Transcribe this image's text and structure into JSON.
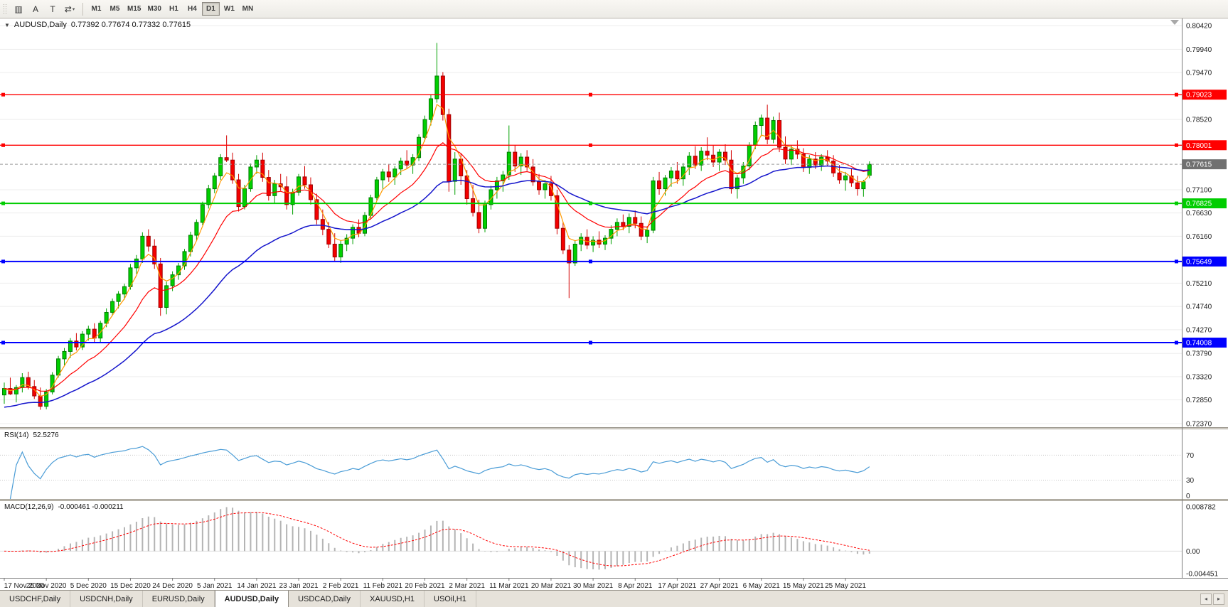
{
  "toolbar": {
    "tools": [
      {
        "name": "charts-icon",
        "glyph": "▥",
        "dropdown": false
      },
      {
        "name": "cursor-tool-icon",
        "glyph": "A",
        "dropdown": false
      },
      {
        "name": "text-tool-icon",
        "glyph": "T",
        "dropdown": false
      },
      {
        "name": "indicators-tool-icon",
        "glyph": "⇄",
        "dropdown": true
      }
    ],
    "timeframes": [
      "M1",
      "M5",
      "M15",
      "M30",
      "H1",
      "H4",
      "D1",
      "W1",
      "MN"
    ],
    "active_timeframe": "D1"
  },
  "chart": {
    "arrow_glyph": "▼",
    "symbol_period": "AUDUSD,Daily",
    "ohlc": "0.77392 0.77674 0.77332 0.77615",
    "rsi_label": "RSI(14)",
    "rsi_value": "52.5276",
    "macd_label": "MACD(12,26,9)",
    "macd_values": "-0.000461 -0.000211"
  },
  "chart_data": {
    "type": "candlestick",
    "symbol": "AUDUSD",
    "timeframe": "Daily",
    "current_bar": {
      "open": 0.77392,
      "high": 0.77674,
      "low": 0.77332,
      "close": 0.77615
    },
    "y_axis": {
      "min": 0.7237,
      "max": 0.8042,
      "labels": [
        {
          "text": "0.80420",
          "price": 0.8042
        },
        {
          "text": "0.79940",
          "price": 0.7994
        },
        {
          "text": "0.79470",
          "price": 0.7947
        },
        {
          "text": "0.78520",
          "price": 0.7852
        },
        {
          "text": "0.77100",
          "price": 0.771
        },
        {
          "text": "0.76630",
          "price": 0.7663
        },
        {
          "text": "0.76160",
          "price": 0.7616
        },
        {
          "text": "0.75210",
          "price": 0.7521
        },
        {
          "text": "0.74740",
          "price": 0.7474
        },
        {
          "text": "0.74270",
          "price": 0.7427
        },
        {
          "text": "0.73790",
          "price": 0.7379
        },
        {
          "text": "0.73320",
          "price": 0.7332
        },
        {
          "text": "0.72850",
          "price": 0.7285
        },
        {
          "text": "0.72370",
          "price": 0.7237
        }
      ]
    },
    "x_labels": [
      "17 Nov 2020",
      "26 Nov 2020",
      "5 Dec 2020",
      "15 Dec 2020",
      "24 Dec 2020",
      "5 Jan 2021",
      "14 Jan 2021",
      "23 Jan 2021",
      "2 Feb 2021",
      "11 Feb 2021",
      "20 Feb 2021",
      "2 Mar 2021",
      "11 Mar 2021",
      "20 Mar 2021",
      "30 Mar 2021",
      "8 Apr 2021",
      "17 Apr 2021",
      "27 Apr 2021",
      "6 May 2021",
      "15 May 2021",
      "25 May 2021"
    ],
    "hlines": [
      {
        "price": 0.79023,
        "label": "0.79023",
        "color": "#FF0000",
        "width": 1.4
      },
      {
        "price": 0.78001,
        "label": "0.78001",
        "color": "#FF0000",
        "width": 1.4
      },
      {
        "price": 0.76825,
        "label": "0.76825",
        "color": "#00CD00",
        "width": 2
      },
      {
        "price": 0.75649,
        "label": "0.75649",
        "color": "#0000FF",
        "width": 2
      },
      {
        "price": 0.74008,
        "label": "0.74008",
        "color": "#0000FF",
        "width": 2
      }
    ],
    "price_line": {
      "price": 0.77615,
      "label": "0.77615",
      "color": "#707070"
    },
    "moving_averages": [
      {
        "period": 4,
        "color": "#FF9A00",
        "width": 1.2
      },
      {
        "period": 13,
        "color": "#FF0000",
        "width": 1.2
      },
      {
        "period": 34,
        "color": "#1515CC",
        "width": 1.5,
        "seed_offset": -0.004
      }
    ],
    "style": {
      "bull_fill": "#00D000",
      "bull_stroke": "#007A00",
      "bull_wick": "#00A000",
      "bear_fill": "#F40000",
      "bear_stroke": "#9E0000",
      "bear_wick": "#D40000",
      "grid": "#EDEDED",
      "background": "#FFFFFF",
      "axis": "#7A7A7A",
      "text": "#1A1A1A"
    },
    "indicators": {
      "rsi": {
        "period": 14,
        "value": "52.5276",
        "color": "#4A9CD6",
        "levels": [
          70,
          30
        ],
        "scale_labels": [
          {
            "text": "70",
            "value": 70
          },
          {
            "text": "30",
            "value": 30
          },
          {
            "text": "0",
            "value": 0
          }
        ]
      },
      "macd": {
        "fast": 12,
        "slow": 26,
        "signal": 9,
        "value_main": "-0.000461",
        "value_signal": "-0.000211",
        "hist_color": "#B4B4B4",
        "signal_color": "#FF0000",
        "scale_max": 0.008782,
        "scale_min": -0.004451,
        "scale_labels": [
          {
            "text": "0.008782",
            "value": 0.008782
          },
          {
            "text": "0.00",
            "value": 0
          },
          {
            "text": "-0.004451",
            "value": -0.004451
          }
        ]
      }
    },
    "candles": [
      [
        0.7295,
        0.732,
        0.7277,
        0.7308
      ],
      [
        0.7308,
        0.733,
        0.7295,
        0.7297
      ],
      [
        0.7297,
        0.7315,
        0.728,
        0.731
      ],
      [
        0.731,
        0.7339,
        0.73,
        0.733
      ],
      [
        0.733,
        0.7342,
        0.7306,
        0.7312
      ],
      [
        0.7312,
        0.7325,
        0.7287,
        0.7293
      ],
      [
        0.7293,
        0.731,
        0.7265,
        0.7272
      ],
      [
        0.7272,
        0.7307,
        0.7266,
        0.7301
      ],
      [
        0.7301,
        0.7341,
        0.7296,
        0.7335
      ],
      [
        0.7335,
        0.7374,
        0.733,
        0.7368
      ],
      [
        0.7368,
        0.739,
        0.7355,
        0.7383
      ],
      [
        0.7383,
        0.741,
        0.737,
        0.7404
      ],
      [
        0.7404,
        0.742,
        0.7385,
        0.7392
      ],
      [
        0.7392,
        0.7424,
        0.7386,
        0.7418
      ],
      [
        0.7418,
        0.7435,
        0.7405,
        0.7428
      ],
      [
        0.7428,
        0.744,
        0.74,
        0.741
      ],
      [
        0.741,
        0.7445,
        0.7402,
        0.744
      ],
      [
        0.744,
        0.747,
        0.7432,
        0.7462
      ],
      [
        0.7462,
        0.749,
        0.7455,
        0.7484
      ],
      [
        0.7484,
        0.7505,
        0.747,
        0.7499
      ],
      [
        0.7499,
        0.752,
        0.7488,
        0.7514
      ],
      [
        0.7514,
        0.756,
        0.7508,
        0.7552
      ],
      [
        0.7552,
        0.7578,
        0.754,
        0.757
      ],
      [
        0.757,
        0.7624,
        0.7562,
        0.7616
      ],
      [
        0.7616,
        0.763,
        0.7585,
        0.7596
      ],
      [
        0.7596,
        0.761,
        0.755,
        0.756
      ],
      [
        0.756,
        0.7572,
        0.7455,
        0.7472
      ],
      [
        0.7472,
        0.7524,
        0.7458,
        0.7516
      ],
      [
        0.7516,
        0.7545,
        0.7505,
        0.7538
      ],
      [
        0.7538,
        0.7562,
        0.7528,
        0.7556
      ],
      [
        0.7556,
        0.759,
        0.7548,
        0.7585
      ],
      [
        0.7585,
        0.7625,
        0.7575,
        0.7618
      ],
      [
        0.7618,
        0.765,
        0.7608,
        0.7644
      ],
      [
        0.7644,
        0.7686,
        0.7638,
        0.768
      ],
      [
        0.768,
        0.772,
        0.7672,
        0.7712
      ],
      [
        0.7712,
        0.7744,
        0.7703,
        0.7738
      ],
      [
        0.7738,
        0.7782,
        0.773,
        0.7775
      ],
      [
        0.7775,
        0.782,
        0.7766,
        0.777
      ],
      [
        0.777,
        0.7785,
        0.7722,
        0.773
      ],
      [
        0.773,
        0.7742,
        0.7666,
        0.7676
      ],
      [
        0.7676,
        0.772,
        0.767,
        0.7712
      ],
      [
        0.7712,
        0.7763,
        0.7706,
        0.7756
      ],
      [
        0.7756,
        0.778,
        0.7742,
        0.777
      ],
      [
        0.777,
        0.7785,
        0.7726,
        0.7735
      ],
      [
        0.7735,
        0.775,
        0.7688,
        0.7698
      ],
      [
        0.7698,
        0.773,
        0.7682,
        0.7722
      ],
      [
        0.7722,
        0.7742,
        0.7708,
        0.7716
      ],
      [
        0.7716,
        0.7737,
        0.767,
        0.768
      ],
      [
        0.768,
        0.7712,
        0.766,
        0.7705
      ],
      [
        0.7705,
        0.7742,
        0.7698,
        0.7736
      ],
      [
        0.7736,
        0.7758,
        0.7712,
        0.772
      ],
      [
        0.772,
        0.7735,
        0.768,
        0.769
      ],
      [
        0.769,
        0.7702,
        0.764,
        0.765
      ],
      [
        0.765,
        0.767,
        0.7618,
        0.763
      ],
      [
        0.763,
        0.7645,
        0.7592,
        0.76
      ],
      [
        0.76,
        0.7622,
        0.7564,
        0.7574
      ],
      [
        0.7574,
        0.7608,
        0.7562,
        0.76
      ],
      [
        0.76,
        0.762,
        0.7586,
        0.7612
      ],
      [
        0.7612,
        0.764,
        0.76,
        0.7634
      ],
      [
        0.7634,
        0.765,
        0.7614,
        0.7622
      ],
      [
        0.7622,
        0.7665,
        0.7616,
        0.7658
      ],
      [
        0.7658,
        0.77,
        0.765,
        0.7694
      ],
      [
        0.7694,
        0.7736,
        0.7688,
        0.773
      ],
      [
        0.773,
        0.7752,
        0.7712,
        0.7746
      ],
      [
        0.7746,
        0.7762,
        0.7726,
        0.7736
      ],
      [
        0.7736,
        0.7758,
        0.772,
        0.7752
      ],
      [
        0.7752,
        0.7775,
        0.774,
        0.7768
      ],
      [
        0.7768,
        0.779,
        0.7752,
        0.776
      ],
      [
        0.776,
        0.7782,
        0.7742,
        0.7775
      ],
      [
        0.7775,
        0.7822,
        0.7768,
        0.7816
      ],
      [
        0.7816,
        0.786,
        0.7808,
        0.7852
      ],
      [
        0.7852,
        0.7902,
        0.784,
        0.7894
      ],
      [
        0.7894,
        0.8007,
        0.7886,
        0.794
      ],
      [
        0.794,
        0.7948,
        0.785,
        0.7862
      ],
      [
        0.7862,
        0.7874,
        0.7706,
        0.7727
      ],
      [
        0.7727,
        0.7786,
        0.77,
        0.7772
      ],
      [
        0.7772,
        0.7784,
        0.772,
        0.7738
      ],
      [
        0.7738,
        0.775,
        0.768,
        0.7692
      ],
      [
        0.7692,
        0.772,
        0.7656,
        0.7664
      ],
      [
        0.7664,
        0.769,
        0.7622,
        0.7632
      ],
      [
        0.7632,
        0.7688,
        0.7624,
        0.768
      ],
      [
        0.768,
        0.7718,
        0.767,
        0.771
      ],
      [
        0.771,
        0.7736,
        0.7692,
        0.7728
      ],
      [
        0.7728,
        0.7748,
        0.7706,
        0.774
      ],
      [
        0.774,
        0.784,
        0.773,
        0.7786
      ],
      [
        0.7786,
        0.78,
        0.7746,
        0.7758
      ],
      [
        0.7758,
        0.7784,
        0.774,
        0.7776
      ],
      [
        0.7776,
        0.779,
        0.7748,
        0.7756
      ],
      [
        0.7756,
        0.7772,
        0.7718,
        0.7726
      ],
      [
        0.7726,
        0.7742,
        0.77,
        0.771
      ],
      [
        0.771,
        0.773,
        0.7692,
        0.7722
      ],
      [
        0.7722,
        0.7738,
        0.7688,
        0.7698
      ],
      [
        0.7698,
        0.771,
        0.762,
        0.7632
      ],
      [
        0.7632,
        0.7644,
        0.758,
        0.7588
      ],
      [
        0.7588,
        0.7598,
        0.7491,
        0.7562
      ],
      [
        0.7562,
        0.7608,
        0.7556,
        0.76
      ],
      [
        0.76,
        0.7622,
        0.7586,
        0.7614
      ],
      [
        0.7614,
        0.763,
        0.759,
        0.7598
      ],
      [
        0.7598,
        0.7616,
        0.7584,
        0.7608
      ],
      [
        0.7608,
        0.7626,
        0.7592,
        0.76
      ],
      [
        0.76,
        0.7618,
        0.7588,
        0.7612
      ],
      [
        0.7612,
        0.7638,
        0.76,
        0.763
      ],
      [
        0.763,
        0.7652,
        0.7616,
        0.7644
      ],
      [
        0.7644,
        0.766,
        0.7628,
        0.7636
      ],
      [
        0.7636,
        0.7662,
        0.7622,
        0.7654
      ],
      [
        0.7654,
        0.7668,
        0.7632,
        0.7642
      ],
      [
        0.7642,
        0.7656,
        0.7608,
        0.7616
      ],
      [
        0.7616,
        0.7636,
        0.7602,
        0.7628
      ],
      [
        0.7628,
        0.7736,
        0.7622,
        0.7728
      ],
      [
        0.7728,
        0.7746,
        0.77,
        0.7712
      ],
      [
        0.7712,
        0.774,
        0.7698,
        0.7734
      ],
      [
        0.7734,
        0.7756,
        0.7716,
        0.7748
      ],
      [
        0.7748,
        0.7766,
        0.7722,
        0.7732
      ],
      [
        0.7732,
        0.7764,
        0.7718,
        0.7756
      ],
      [
        0.7756,
        0.7786,
        0.774,
        0.7778
      ],
      [
        0.7778,
        0.7798,
        0.7752,
        0.776
      ],
      [
        0.776,
        0.7796,
        0.7748,
        0.7788
      ],
      [
        0.7788,
        0.7816,
        0.777,
        0.778
      ],
      [
        0.778,
        0.78,
        0.7756,
        0.7766
      ],
      [
        0.7766,
        0.7792,
        0.7748,
        0.7786
      ],
      [
        0.7786,
        0.7802,
        0.776,
        0.777
      ],
      [
        0.777,
        0.779,
        0.7702,
        0.7712
      ],
      [
        0.7712,
        0.774,
        0.7692,
        0.7734
      ],
      [
        0.7734,
        0.7766,
        0.7722,
        0.7758
      ],
      [
        0.7758,
        0.7806,
        0.775,
        0.78
      ],
      [
        0.78,
        0.7848,
        0.7792,
        0.784
      ],
      [
        0.784,
        0.7862,
        0.7818,
        0.7855
      ],
      [
        0.7855,
        0.7882,
        0.7802,
        0.7812
      ],
      [
        0.7812,
        0.7858,
        0.7804,
        0.785
      ],
      [
        0.785,
        0.7866,
        0.7786,
        0.7796
      ],
      [
        0.7796,
        0.7818,
        0.7762,
        0.7772
      ],
      [
        0.7772,
        0.78,
        0.776,
        0.7792
      ],
      [
        0.7792,
        0.781,
        0.7772,
        0.7782
      ],
      [
        0.7782,
        0.7794,
        0.7746,
        0.7755
      ],
      [
        0.7755,
        0.778,
        0.7742,
        0.7772
      ],
      [
        0.7772,
        0.7786,
        0.7752,
        0.776
      ],
      [
        0.776,
        0.7782,
        0.7748,
        0.7776
      ],
      [
        0.7776,
        0.779,
        0.7758,
        0.7768
      ],
      [
        0.7768,
        0.778,
        0.7736,
        0.7744
      ],
      [
        0.7744,
        0.776,
        0.7722,
        0.773
      ],
      [
        0.773,
        0.7746,
        0.7708,
        0.7738
      ],
      [
        0.7738,
        0.7752,
        0.7716,
        0.7724
      ],
      [
        0.7724,
        0.7738,
        0.7698,
        0.7712
      ],
      [
        0.7712,
        0.773,
        0.7696,
        0.7726
      ],
      [
        0.77392,
        0.77674,
        0.77332,
        0.77615
      ]
    ]
  },
  "tabs": {
    "items": [
      "USDCHF,Daily",
      "USDCNH,Daily",
      "EURUSD,Daily",
      "AUDUSD,Daily",
      "USDCAD,Daily",
      "XAUUSD,H1",
      "USOil,H1"
    ],
    "active": "AUDUSD,Daily",
    "left_arrow": "◂",
    "right_arrow": "▸"
  }
}
